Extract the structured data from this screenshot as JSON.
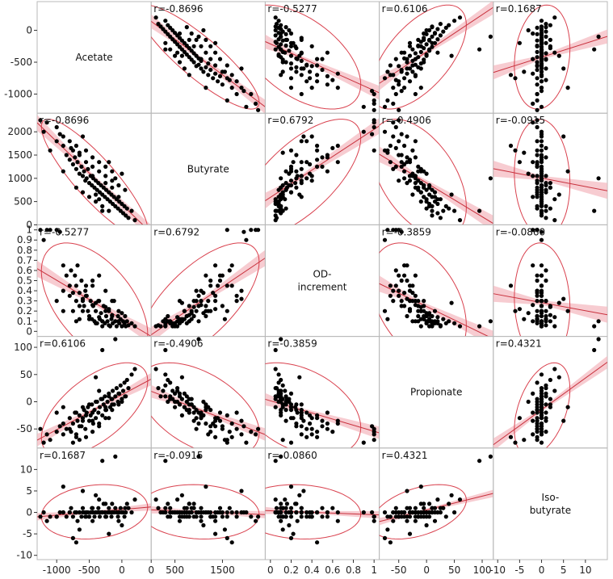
{
  "chart_data": {
    "type": "scatter",
    "variables": [
      {
        "name": "Acetate",
        "lines": [
          "Acetate"
        ],
        "range": [
          -1300,
          450
        ],
        "ticks": [
          -1000,
          -500,
          0
        ],
        "tick_labels": [
          "-1000",
          "-500",
          "0"
        ],
        "y_ticks": [
          0,
          -500,
          -1000
        ],
        "y_tick_labels": [
          "0",
          "-500",
          "-1000"
        ]
      },
      {
        "name": "Butyrate",
        "lines": [
          "Butyrate"
        ],
        "range": [
          0,
          2400
        ],
        "ticks": [
          0,
          500,
          1500
        ],
        "tick_labels": [
          "0",
          "500",
          "1500"
        ],
        "y_ticks": [
          0,
          500,
          1000,
          1500,
          2000
        ],
        "y_tick_labels": [
          "0",
          "500",
          "1000",
          "1500",
          "2000"
        ]
      },
      {
        "name": "OD-increment",
        "lines": [
          "OD-",
          "increment"
        ],
        "range": [
          -0.05,
          1.05
        ],
        "ticks": [
          0,
          0.2,
          0.4,
          0.6,
          0.8,
          1
        ],
        "tick_labels": [
          "0",
          "0.2",
          "0.4",
          "0.6",
          "0.8",
          "1"
        ],
        "y_ticks": [
          0,
          0.1,
          0.2,
          0.3,
          0.4,
          0.5,
          0.6,
          0.7,
          0.8,
          0.9,
          1
        ],
        "y_tick_labels": [
          "0",
          "0.1",
          "0.2",
          "0.3",
          "0.4",
          "0.5",
          "0.6",
          "0.7",
          "0.8",
          "0.9",
          "1"
        ]
      },
      {
        "name": "Propionate",
        "lines": [
          "Propionate"
        ],
        "range": [
          -85,
          120
        ],
        "ticks": [
          -50,
          0,
          50,
          100
        ],
        "tick_labels": [
          "-50",
          "0",
          "50",
          "100"
        ],
        "y_ticks": [
          -50,
          0,
          50,
          100
        ],
        "y_tick_labels": [
          "-50",
          "0",
          "50",
          "100"
        ]
      },
      {
        "name": "Iso-butyrate",
        "lines": [
          "Iso-",
          "butyrate"
        ],
        "range": [
          -11,
          15
        ],
        "ticks": [
          -10,
          -5,
          0,
          5,
          10
        ],
        "tick_labels": [
          "-10",
          "-5",
          "0",
          "5",
          "10"
        ],
        "y_ticks": [
          -10,
          -5,
          0,
          5,
          10
        ],
        "y_tick_labels": [
          "-10",
          "-5",
          "0",
          "5",
          "10"
        ]
      }
    ],
    "correlations": [
      [
        null,
        "-0.8696",
        "-0.5277",
        "0.6106",
        "0.1687"
      ],
      [
        "-0.8696",
        null,
        "0.6792",
        "-0.4906",
        "-0.0915"
      ],
      [
        "-0.5277",
        "0.6792",
        null,
        "-0.3859",
        "-0.0860"
      ],
      [
        "0.6106",
        "-0.4906",
        "-0.3859",
        null,
        "0.4321"
      ],
      [
        "0.1687",
        "-0.0915",
        "-0.0860",
        "0.4321",
        null
      ]
    ],
    "r_prefix": "r=",
    "observations": [
      [
        -1150,
        2200,
        1.0,
        -60,
        -2
      ],
      [
        -1000,
        2100,
        1.0,
        -55,
        -1
      ],
      [
        -950,
        1950,
        0.98,
        -45,
        0
      ],
      [
        -1100,
        1600,
        1.0,
        -70,
        -1
      ],
      [
        -900,
        1700,
        0.65,
        -40,
        0
      ],
      [
        -850,
        1500,
        0.55,
        -50,
        -1
      ],
      [
        -800,
        1400,
        0.45,
        -30,
        0
      ],
      [
        -780,
        1650,
        0.6,
        -55,
        1
      ],
      [
        -750,
        1300,
        0.38,
        -40,
        -1
      ],
      [
        -720,
        1450,
        0.55,
        -20,
        0
      ],
      [
        -700,
        1200,
        0.3,
        -60,
        0
      ],
      [
        -680,
        1350,
        0.65,
        -35,
        -2
      ],
      [
        -650,
        1100,
        0.38,
        -25,
        0
      ],
      [
        -620,
        1250,
        0.5,
        -45,
        -1
      ],
      [
        -600,
        1050,
        0.3,
        -30,
        1
      ],
      [
        -580,
        1150,
        0.25,
        -15,
        0
      ],
      [
        -560,
        950,
        0.4,
        -50,
        -1
      ],
      [
        -540,
        1000,
        0.35,
        -20,
        0
      ],
      [
        -520,
        1200,
        0.2,
        -10,
        0
      ],
      [
        -500,
        900,
        0.15,
        -35,
        -1
      ],
      [
        -480,
        1050,
        0.3,
        -25,
        0
      ],
      [
        -460,
        850,
        0.12,
        -5,
        1
      ],
      [
        -440,
        1000,
        0.25,
        -40,
        0
      ],
      [
        -420,
        800,
        0.1,
        -15,
        -1
      ],
      [
        -400,
        950,
        0.2,
        -30,
        0
      ],
      [
        -380,
        750,
        0.08,
        0,
        0
      ],
      [
        -360,
        900,
        0.3,
        -20,
        1
      ],
      [
        -340,
        700,
        0.12,
        -10,
        -1
      ],
      [
        -320,
        850,
        0.18,
        5,
        0
      ],
      [
        -300,
        650,
        0.1,
        -25,
        0
      ],
      [
        -280,
        800,
        0.25,
        -5,
        2
      ],
      [
        -260,
        600,
        0.08,
        10,
        0
      ],
      [
        -240,
        750,
        0.15,
        -15,
        -1
      ],
      [
        -220,
        550,
        0.1,
        0,
        0
      ],
      [
        -200,
        700,
        0.2,
        15,
        1
      ],
      [
        -180,
        500,
        0.05,
        -10,
        0
      ],
      [
        -160,
        650,
        0.12,
        5,
        -1
      ],
      [
        -140,
        450,
        0.08,
        20,
        0
      ],
      [
        -120,
        600,
        0.3,
        -5,
        0
      ],
      [
        -100,
        400,
        0.1,
        10,
        1
      ],
      [
        -80,
        550,
        0.05,
        25,
        0
      ],
      [
        -60,
        350,
        0.15,
        0,
        -1
      ],
      [
        -40,
        500,
        0.08,
        15,
        0
      ],
      [
        -20,
        300,
        0.12,
        30,
        1
      ],
      [
        0,
        450,
        0.05,
        5,
        0
      ],
      [
        20,
        250,
        0.1,
        20,
        0
      ],
      [
        40,
        400,
        0.08,
        35,
        -1
      ],
      [
        60,
        200,
        0.05,
        10,
        0
      ],
      [
        80,
        350,
        0.1,
        40,
        2
      ],
      [
        100,
        150,
        0.06,
        25,
        1
      ],
      [
        150,
        300,
        0.08,
        50,
        0
      ],
      [
        200,
        100,
        0.05,
        60,
        3
      ],
      [
        -650,
        1500,
        0.25,
        -45,
        0
      ],
      [
        -550,
        1350,
        0.35,
        -65,
        -1
      ],
      [
        -450,
        1250,
        0.45,
        -55,
        0
      ],
      [
        -350,
        1150,
        0.55,
        -40,
        0
      ],
      [
        -250,
        1050,
        0.4,
        -30,
        -1
      ],
      [
        -150,
        950,
        0.3,
        -15,
        0
      ],
      [
        -50,
        850,
        0.2,
        -5,
        0
      ],
      [
        50,
        750,
        0.15,
        10,
        1
      ],
      [
        -700,
        800,
        0.1,
        -20,
        0
      ],
      [
        -600,
        700,
        0.2,
        -10,
        0
      ],
      [
        -500,
        600,
        0.12,
        -5,
        -1
      ],
      [
        -400,
        500,
        0.08,
        0,
        0
      ],
      [
        -300,
        400,
        0.1,
        5,
        0
      ],
      [
        -200,
        300,
        0.06,
        10,
        0
      ],
      [
        -550,
        1600,
        0.45,
        -25,
        0
      ],
      [
        -450,
        1450,
        0.5,
        -35,
        1
      ],
      [
        -350,
        1350,
        0.3,
        -45,
        0
      ],
      [
        -250,
        1250,
        0.2,
        -15,
        -1
      ],
      [
        -150,
        1150,
        0.15,
        -5,
        0
      ],
      [
        -1000,
        1800,
        0.3,
        -20,
        -1
      ],
      [
        -900,
        1900,
        0.4,
        -60,
        0
      ],
      [
        -800,
        1800,
        0.35,
        -50,
        0
      ],
      [
        -750,
        1600,
        0.2,
        -75,
        -6
      ],
      [
        -700,
        1700,
        0.45,
        -65,
        -7
      ],
      [
        -650,
        1550,
        0.12,
        -70,
        -4
      ],
      [
        -100,
        1000,
        0.1,
        115,
        13
      ],
      [
        -300,
        300,
        0.05,
        95,
        12
      ],
      [
        -1200,
        2000,
        0.9,
        -75,
        0
      ],
      [
        -1250,
        2250,
        1.0,
        -50,
        -1
      ],
      [
        -900,
        1150,
        0.2,
        -10,
        6
      ],
      [
        -600,
        1900,
        0.32,
        -35,
        5
      ],
      [
        -400,
        650,
        0.28,
        45,
        4
      ],
      [
        -200,
        1350,
        0.22,
        -30,
        -5
      ],
      [
        0,
        1100,
        0.18,
        0,
        -3
      ],
      [
        -350,
        550,
        0.14,
        20,
        3
      ],
      [
        -150,
        800,
        0.16,
        5,
        2
      ],
      [
        -50,
        600,
        0.1,
        15,
        -2
      ],
      [
        -250,
        900,
        0.24,
        -10,
        2
      ],
      [
        -450,
        1050,
        0.26,
        -20,
        -2
      ]
    ]
  }
}
